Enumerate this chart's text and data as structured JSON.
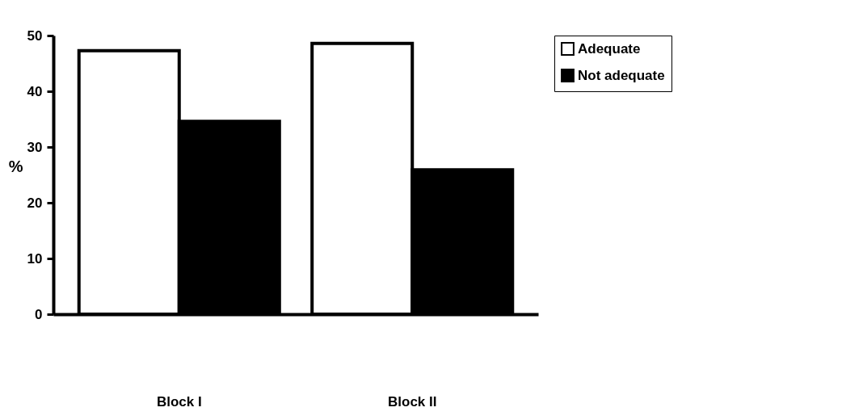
{
  "chart_data": {
    "type": "bar",
    "ylabel": "%",
    "categories": [
      "Block I",
      "Block II"
    ],
    "series": [
      {
        "name": "Adequate",
        "color": "#ffffff",
        "values": [
          47.3,
          48.6
        ]
      },
      {
        "name": "Not adequate",
        "color": "#000000",
        "values": [
          34.6,
          25.9
        ]
      }
    ],
    "ylim": [
      0,
      50
    ],
    "yticks": [
      0,
      10,
      20,
      30,
      40,
      50
    ],
    "grid": false,
    "legend": "right"
  }
}
